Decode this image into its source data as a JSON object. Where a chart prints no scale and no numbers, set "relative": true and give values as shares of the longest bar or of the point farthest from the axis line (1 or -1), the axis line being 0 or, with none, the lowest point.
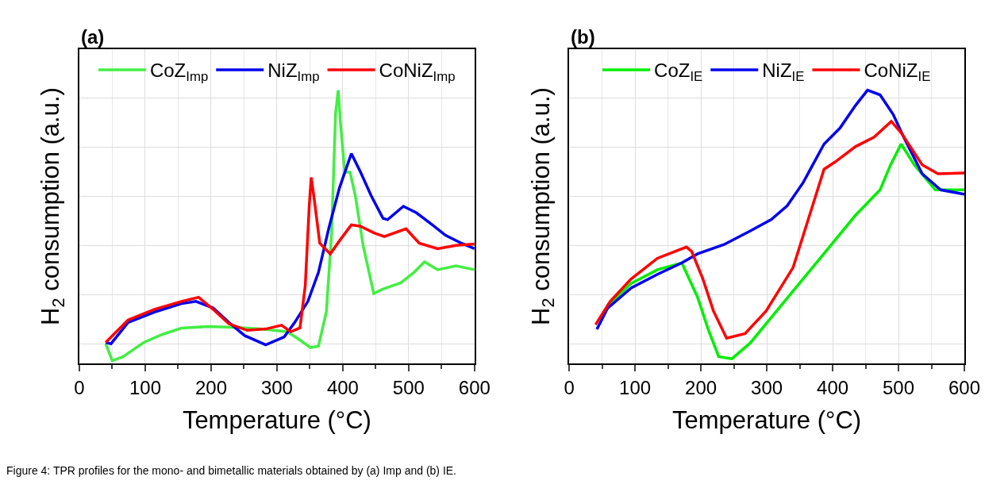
{
  "chart_data": [
    {
      "type": "line",
      "title": "(a)",
      "xlabel": "Temperature (°C)",
      "ylabel": "H$_{2}$ consumption (a.u.)",
      "relative": true,
      "xlim": [
        0,
        600
      ],
      "xticks": [
        0,
        100,
        200,
        300,
        400,
        500,
        600
      ],
      "tick_labels": "x",
      "grid": true,
      "legend": "top",
      "annotations": [
        "Figure 4: TPR profiles for the mono- and bimetallic materials obtained by (a) Imp and (b) IE."
      ],
      "series": [
        {
          "name": "CoZ$_{Imp}$",
          "color": "#44ee44",
          "x": [
            40,
            50,
            66,
            98,
            126,
            155,
            195,
            235,
            275,
            315,
            331,
            351,
            363,
            375,
            383,
            389,
            393,
            397,
            403,
            411,
            419,
            431,
            447,
            460,
            488,
            508,
            524,
            544,
            572,
            600
          ],
          "values": [
            0.072,
            0.01,
            0.024,
            0.077,
            0.106,
            0.129,
            0.135,
            0.132,
            0.126,
            0.116,
            0.092,
            0.058,
            0.063,
            0.188,
            0.478,
            0.913,
            1.0,
            0.865,
            0.7,
            0.7,
            0.614,
            0.43,
            0.256,
            0.271,
            0.295,
            0.333,
            0.372,
            0.343,
            0.357,
            0.343
          ]
        },
        {
          "name": "NiZ$_{Imp}$",
          "color": "#0000ee",
          "x": [
            40,
            48,
            74,
            114,
            155,
            177,
            203,
            227,
            251,
            283,
            311,
            327,
            347,
            363,
            379,
            395,
            413,
            427,
            443,
            461,
            468,
            492,
            512,
            536,
            556,
            580,
            600
          ],
          "values": [
            0.077,
            0.072,
            0.15,
            0.188,
            0.219,
            0.227,
            0.203,
            0.15,
            0.102,
            0.068,
            0.097,
            0.15,
            0.227,
            0.333,
            0.497,
            0.643,
            0.768,
            0.7,
            0.614,
            0.531,
            0.526,
            0.575,
            0.551,
            0.507,
            0.469,
            0.44,
            0.42
          ]
        },
        {
          "name": "CoNiZ$_{Imp}$",
          "color": "#ff0000",
          "x": [
            40,
            74,
            114,
            155,
            181,
            203,
            227,
            255,
            283,
            307,
            321,
            335,
            343,
            349,
            352,
            357,
            365,
            381,
            395,
            413,
            427,
            447,
            463,
            496,
            516,
            544,
            572,
            600
          ],
          "values": [
            0.077,
            0.159,
            0.198,
            0.227,
            0.242,
            0.198,
            0.145,
            0.121,
            0.126,
            0.14,
            0.116,
            0.13,
            0.285,
            0.575,
            0.681,
            0.594,
            0.44,
            0.401,
            0.449,
            0.507,
            0.502,
            0.478,
            0.464,
            0.493,
            0.44,
            0.42,
            0.432,
            0.437
          ]
        }
      ]
    },
    {
      "type": "line",
      "title": "(b)",
      "xlabel": "Temperature (°C)",
      "ylabel": "H$_{2}$ consumption (a.u.)",
      "relative": true,
      "xlim": [
        0,
        600
      ],
      "xticks": [
        0,
        100,
        200,
        300,
        400,
        500,
        600
      ],
      "tick_labels": "x",
      "grid": true,
      "legend": "top",
      "series": [
        {
          "name": "CoZ$_{IE}$",
          "color": "#00ee00",
          "x": [
            58,
            94,
            134,
            171,
            179,
            195,
            211,
            227,
            247,
            275,
            315,
            355,
            395,
            435,
            472,
            488,
            504,
            524,
            556,
            580,
            600
          ],
          "values": [
            0.209,
            0.293,
            0.343,
            0.368,
            0.326,
            0.242,
            0.125,
            0.025,
            0.017,
            0.075,
            0.192,
            0.309,
            0.426,
            0.543,
            0.635,
            0.727,
            0.803,
            0.727,
            0.635,
            0.635,
            0.635
          ]
        },
        {
          "name": "NiZ$_{IE}$",
          "color": "#0000ee",
          "x": [
            42,
            58,
            94,
            134,
            171,
            195,
            235,
            275,
            307,
            331,
            355,
            387,
            411,
            435,
            453,
            472,
            492,
            508,
            536,
            564,
            600
          ],
          "values": [
            0.125,
            0.201,
            0.276,
            0.326,
            0.368,
            0.401,
            0.435,
            0.485,
            0.527,
            0.577,
            0.661,
            0.803,
            0.861,
            0.945,
            1.0,
            0.983,
            0.911,
            0.828,
            0.694,
            0.635,
            0.619
          ]
        },
        {
          "name": "CoNiZ$_{IE}$",
          "color": "#ff0000",
          "x": [
            40,
            62,
            94,
            134,
            178,
            186,
            203,
            219,
            239,
            267,
            299,
            340,
            363,
            387,
            403,
            435,
            463,
            489,
            504,
            536,
            560,
            600
          ],
          "values": [
            0.142,
            0.226,
            0.309,
            0.385,
            0.426,
            0.41,
            0.309,
            0.192,
            0.092,
            0.109,
            0.192,
            0.351,
            0.527,
            0.711,
            0.736,
            0.794,
            0.828,
            0.886,
            0.844,
            0.727,
            0.694,
            0.697
          ]
        }
      ]
    }
  ]
}
